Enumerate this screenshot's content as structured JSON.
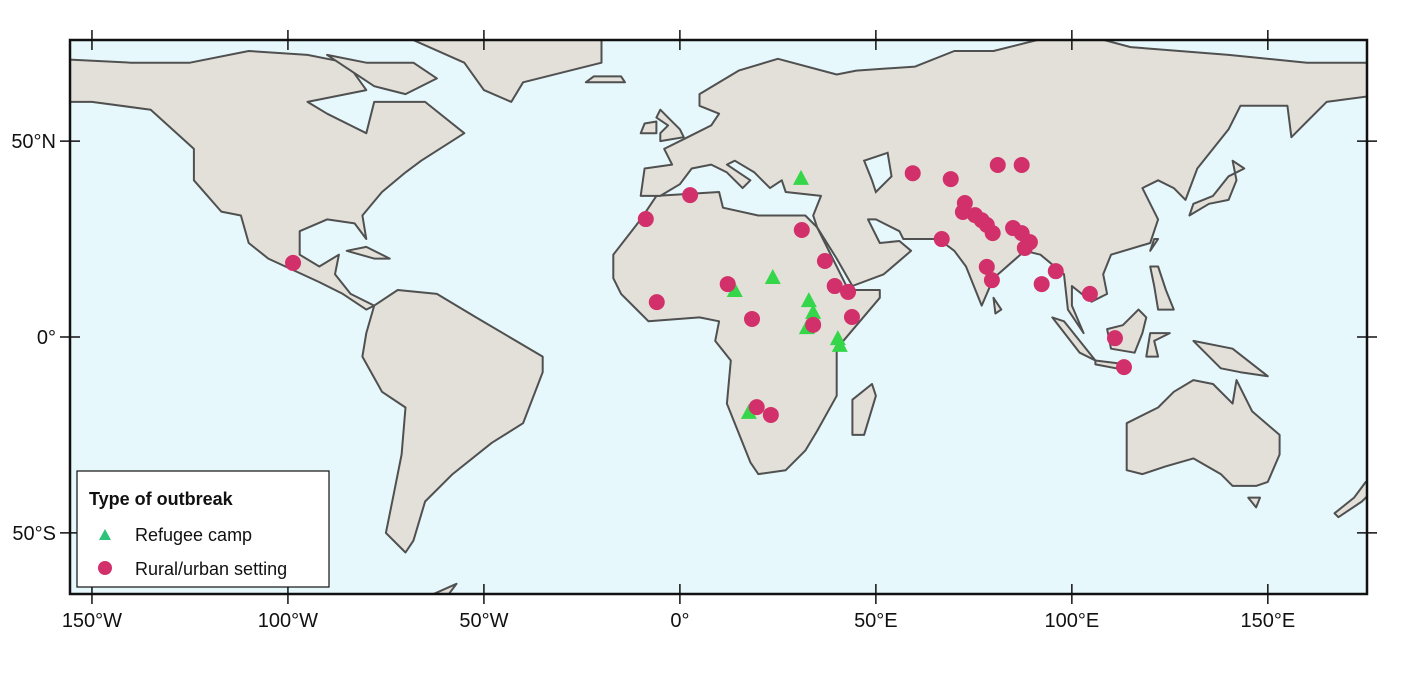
{
  "chart_data": {
    "type": "scatter",
    "map_projection": "equirectangular",
    "xlim": [
      -155.6,
      175.3
    ],
    "ylim": [
      -65.6,
      75.8
    ],
    "x_ticks": [
      {
        "value": -150,
        "label": "150°W"
      },
      {
        "value": -100,
        "label": "100°W"
      },
      {
        "value": -50,
        "label": "50°W"
      },
      {
        "value": 0,
        "label": "0°"
      },
      {
        "value": 50,
        "label": "50°E"
      },
      {
        "value": 100,
        "label": "100°E"
      },
      {
        "value": 150,
        "label": "150°E"
      }
    ],
    "y_ticks": [
      {
        "value": 50,
        "label": "50°N"
      },
      {
        "value": 0,
        "label": "0°"
      },
      {
        "value": -50,
        "label": "50°S"
      }
    ],
    "grid": false,
    "legend": {
      "title": "Type of outbreak",
      "placement": "bottom-left"
    },
    "colors": {
      "ocean": "#e6f8fc",
      "land": "#e2e0d9",
      "coast": "#505050",
      "refugee": "#35d64a",
      "refugee_legend": "#2fc27a",
      "rural": "#d2306a"
    },
    "series": [
      {
        "name": "Refugee camp",
        "marker": "triangle",
        "points": [
          [
            30.9,
            40.6
          ],
          [
            23.7,
            15.3
          ],
          [
            14.0,
            12.0
          ],
          [
            32.9,
            9.4
          ],
          [
            34.0,
            6.4
          ],
          [
            32.4,
            2.5
          ],
          [
            40.3,
            -0.3
          ],
          [
            40.8,
            -2.0
          ],
          [
            17.6,
            -19.1
          ]
        ]
      },
      {
        "name": "Rural/urban setting",
        "marker": "circle",
        "points": [
          [
            -98.7,
            18.9
          ],
          [
            2.6,
            36.2
          ],
          [
            -8.7,
            30.1
          ],
          [
            31.1,
            27.3
          ],
          [
            37.0,
            19.4
          ],
          [
            12.2,
            13.5
          ],
          [
            -5.9,
            8.9
          ],
          [
            39.5,
            13.0
          ],
          [
            42.9,
            11.5
          ],
          [
            43.9,
            5.1
          ],
          [
            18.4,
            4.6
          ],
          [
            34.0,
            3.1
          ],
          [
            19.6,
            -17.9
          ],
          [
            23.2,
            -19.9
          ],
          [
            59.4,
            41.8
          ],
          [
            69.1,
            40.3
          ],
          [
            81.1,
            43.9
          ],
          [
            87.2,
            43.9
          ],
          [
            72.7,
            34.2
          ],
          [
            72.2,
            31.9
          ],
          [
            75.3,
            31.1
          ],
          [
            77.0,
            29.8
          ],
          [
            78.3,
            28.6
          ],
          [
            79.8,
            26.5
          ],
          [
            85.0,
            27.8
          ],
          [
            87.2,
            26.5
          ],
          [
            89.3,
            24.2
          ],
          [
            88.0,
            22.7
          ],
          [
            66.8,
            25.0
          ],
          [
            78.3,
            17.9
          ],
          [
            79.6,
            14.5
          ],
          [
            95.9,
            16.8
          ],
          [
            92.3,
            13.5
          ],
          [
            104.6,
            11.0
          ],
          [
            111.0,
            -0.3
          ],
          [
            113.3,
            -7.7
          ]
        ]
      }
    ]
  }
}
